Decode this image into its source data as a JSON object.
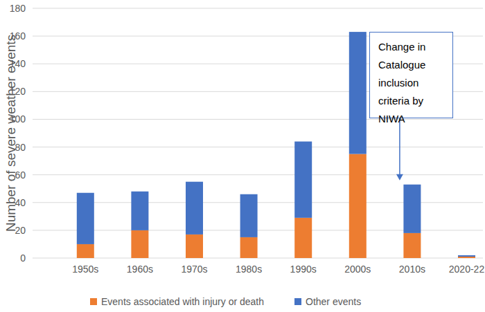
{
  "chart_data": {
    "type": "bar",
    "stacked": true,
    "grid": true,
    "legend": "bottom",
    "y_label": "Number of severe weather events",
    "categories": [
      "1950s",
      "1960s",
      "1970s",
      "1980s",
      "1990s",
      "2000s",
      "2010s",
      "2020-22"
    ],
    "series": [
      {
        "name": "Events associated with injury or death",
        "color": "#ed7d31",
        "values": [
          10,
          20,
          17,
          15,
          29,
          75,
          18,
          1
        ]
      },
      {
        "name": "Other events",
        "color": "#4472c4",
        "values": [
          37,
          28,
          38,
          31,
          55,
          88,
          35,
          1
        ]
      }
    ],
    "ylim": [
      0,
      180
    ],
    "yticks": [
      0,
      20,
      40,
      60,
      80,
      100,
      120,
      140,
      160,
      180
    ],
    "annotations": [
      {
        "text": "Change in Catalogue inclusion criteria by NIWA",
        "x": "2010s"
      }
    ]
  }
}
